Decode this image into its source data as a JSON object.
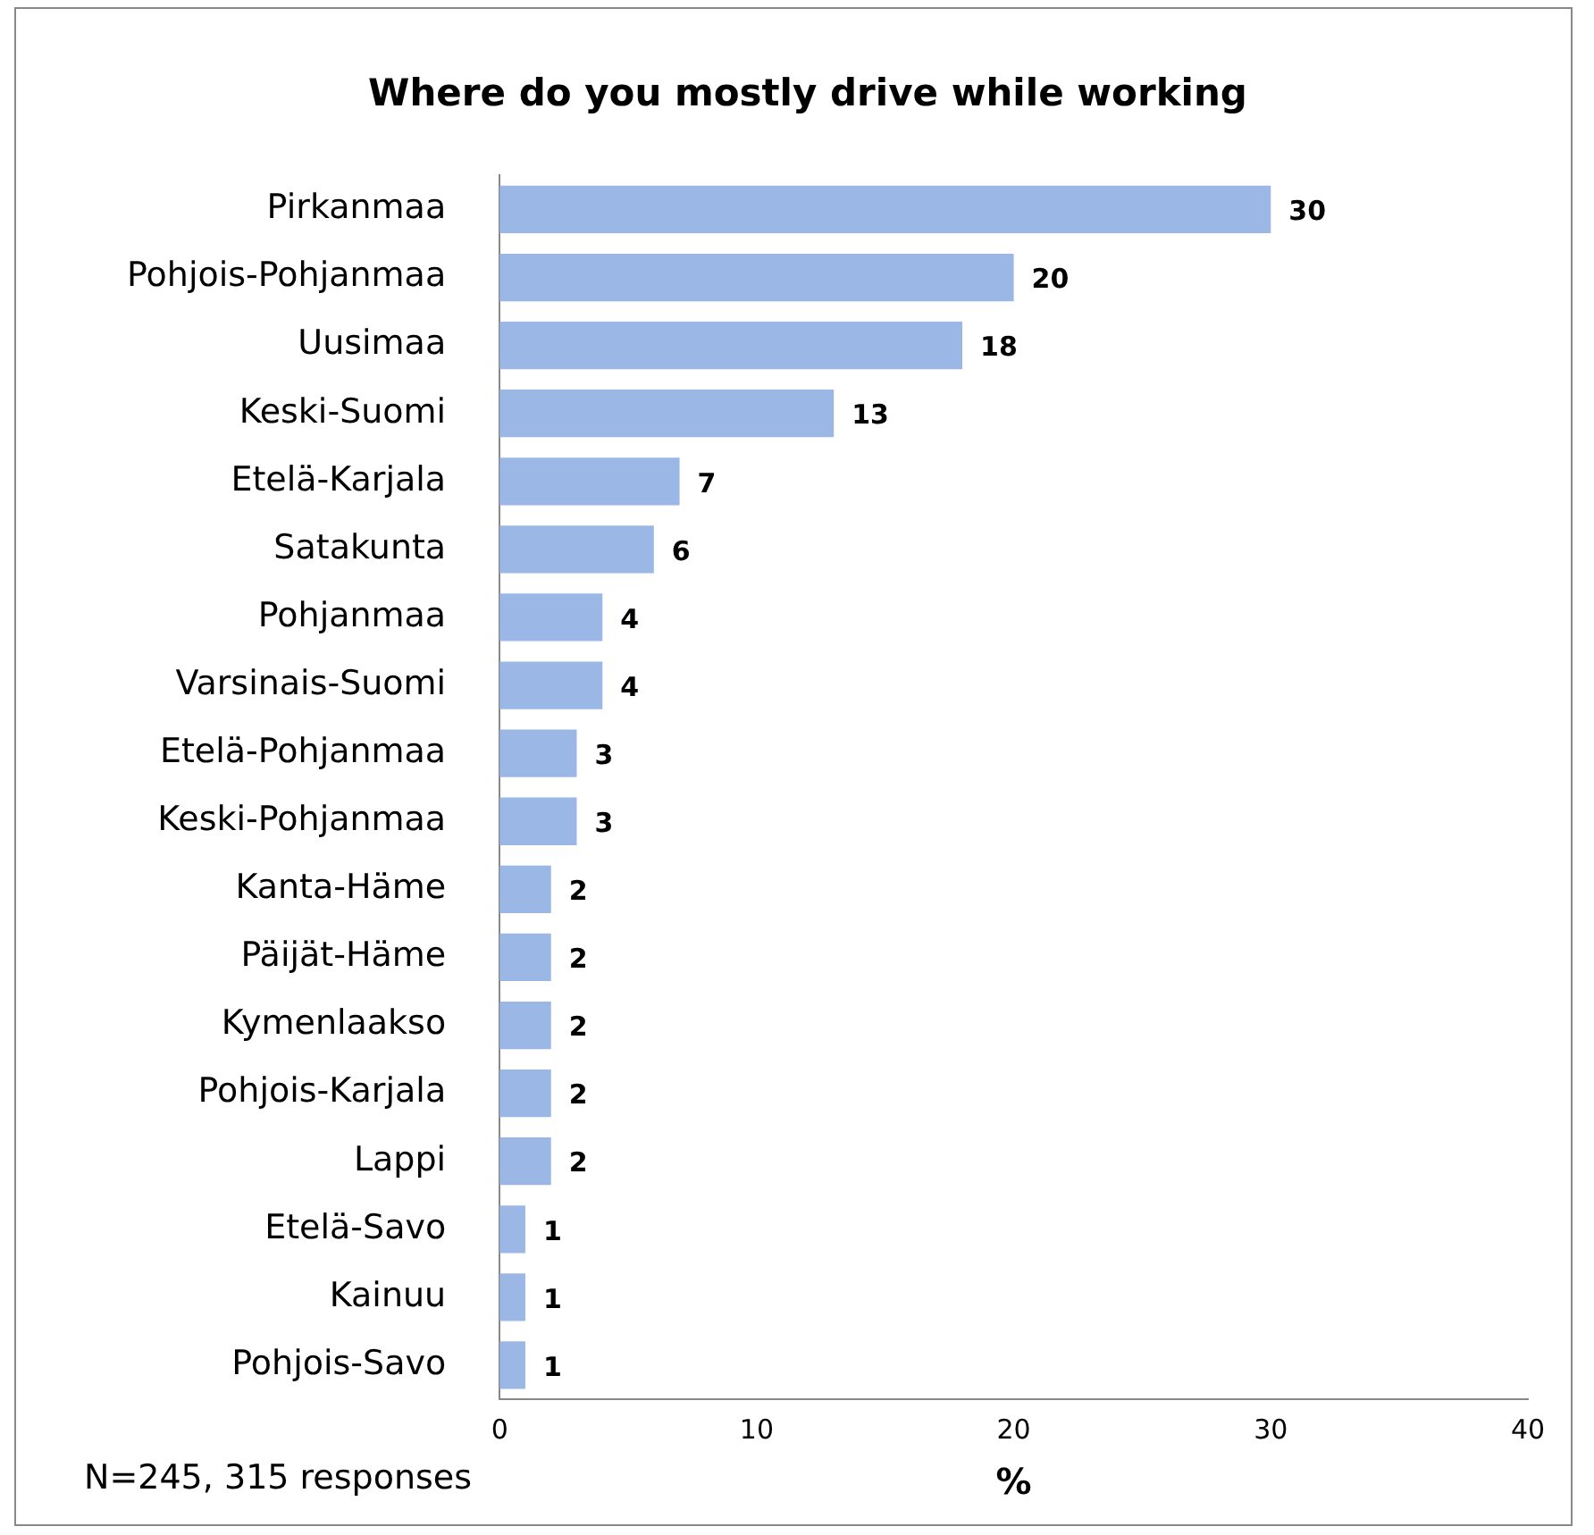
{
  "chart_data": {
    "type": "bar",
    "orientation": "horizontal",
    "title": "Where do you mostly drive while working",
    "xlabel": "%",
    "categories": [
      "Pirkanmaa",
      "Pohjois-Pohjanmaa",
      "Uusimaa",
      "Keski-Suomi",
      "Etelä-Karjala",
      "Satakunta",
      "Pohjanmaa",
      "Varsinais-Suomi",
      "Etelä-Pohjanmaa",
      "Keski-Pohjanmaa",
      "Kanta-Häme",
      "Päijät-Häme",
      "Kymenlaakso",
      "Pohjois-Karjala",
      "Lappi",
      "Etelä-Savo",
      "Kainuu",
      "Pohjois-Savo"
    ],
    "values": [
      30,
      20,
      18,
      13,
      7,
      6,
      4,
      4,
      3,
      3,
      2,
      2,
      2,
      2,
      2,
      1,
      1,
      1
    ],
    "color": "#9bb7e6",
    "data_labels": true,
    "xlim": [
      0,
      40
    ],
    "xticks": [
      0,
      10,
      20,
      30,
      40
    ],
    "grid": false,
    "legend": false,
    "annotations": [
      "N=245, 315 responses"
    ]
  }
}
